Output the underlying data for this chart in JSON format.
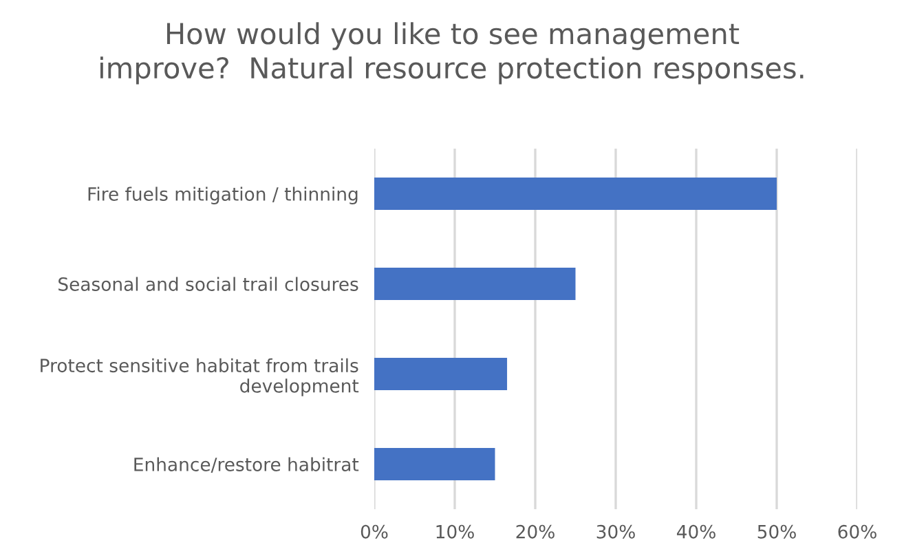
{
  "chart_data": {
    "type": "bar",
    "orientation": "horizontal",
    "title": "How would you like to see management\nimprove?  Natural resource protection responses.",
    "categories": [
      "Fire fuels mitigation / thinning",
      "Seasonal and social trail closures",
      "Protect sensitive habitat from trails\ndevelopment",
      "Enhance/restore habitrat"
    ],
    "values": [
      50,
      25,
      16.5,
      15
    ],
    "color": "#4472c4",
    "xlim": [
      0,
      60
    ],
    "xticks": [
      {
        "value": 0,
        "label": "0%"
      },
      {
        "value": 10,
        "label": "10%"
      },
      {
        "value": 20,
        "label": "20%"
      },
      {
        "value": 30,
        "label": "30%"
      },
      {
        "value": 40,
        "label": "40%"
      },
      {
        "value": 50,
        "label": "50%"
      },
      {
        "value": 60,
        "label": "60%"
      }
    ],
    "grid": "x"
  }
}
